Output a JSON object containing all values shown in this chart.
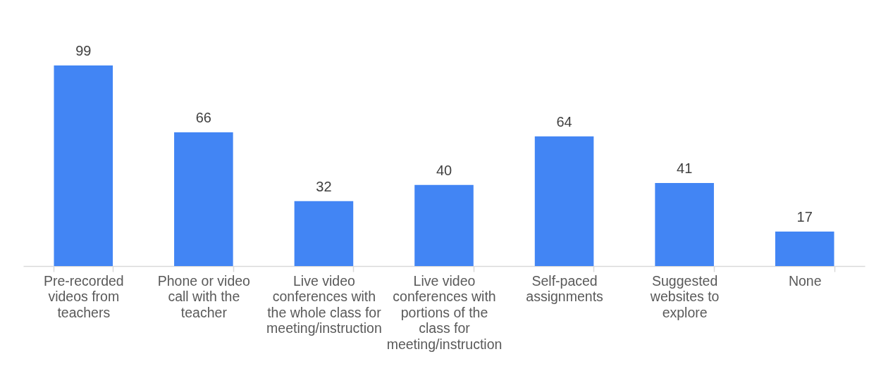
{
  "chart_data": {
    "type": "bar",
    "categories": [
      "Pre-recorded videos from teachers",
      "Phone or video call with the teacher",
      "Live video conferences with the whole class for meeting/instruction",
      "Live video conferences with portions of the class for meeting/instruction",
      "Self-paced assignments",
      "Suggested websites to explore",
      "None"
    ],
    "values": [
      99,
      66,
      32,
      40,
      64,
      41,
      17
    ],
    "color": "#4285f4",
    "data_labels": true
  }
}
